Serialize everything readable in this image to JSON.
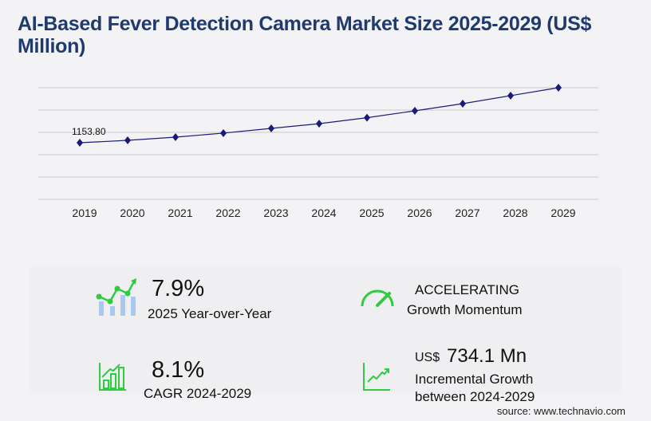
{
  "title": "AI-Based Fever Detection Camera Market Size 2025-2029 (US$ Million)",
  "chart_data": {
    "type": "line",
    "title": "AI-Based Fever Detection Camera Market Size 2025-2029 (US$ Million)",
    "categories": [
      "2019",
      "2020",
      "2021",
      "2022",
      "2023",
      "2024",
      "2025",
      "2026",
      "2027",
      "2028",
      "2029"
    ],
    "values": [
      1153.8,
      1203,
      1268,
      1350,
      1447,
      1542,
      1664,
      1805,
      1951,
      2114,
      2276
    ],
    "data_labels": {
      "2019": "1153.80"
    },
    "ylim": [
      0,
      2276
    ],
    "grid": true,
    "line_color": "#1a1a7a",
    "xlabel": "",
    "ylabel": ""
  },
  "stats": {
    "yoy_value": "7.9%",
    "yoy_label": "2025 Year-over-Year",
    "momentum_value": "ACCELERATING",
    "momentum_label": "Growth Momentum",
    "cagr_value": "8.1%",
    "cagr_label": "CAGR 2024-2029",
    "incr_prefix": "US$",
    "incr_value": "734.1 Mn",
    "incr_label1": "Incremental Growth",
    "incr_label2": "between 2024-2029"
  },
  "source": "source: www.technavio.com",
  "colors": {
    "accent_green": "#2ecc40",
    "bar_blue": "#a8c8f0",
    "title": "#1f3a6e"
  }
}
